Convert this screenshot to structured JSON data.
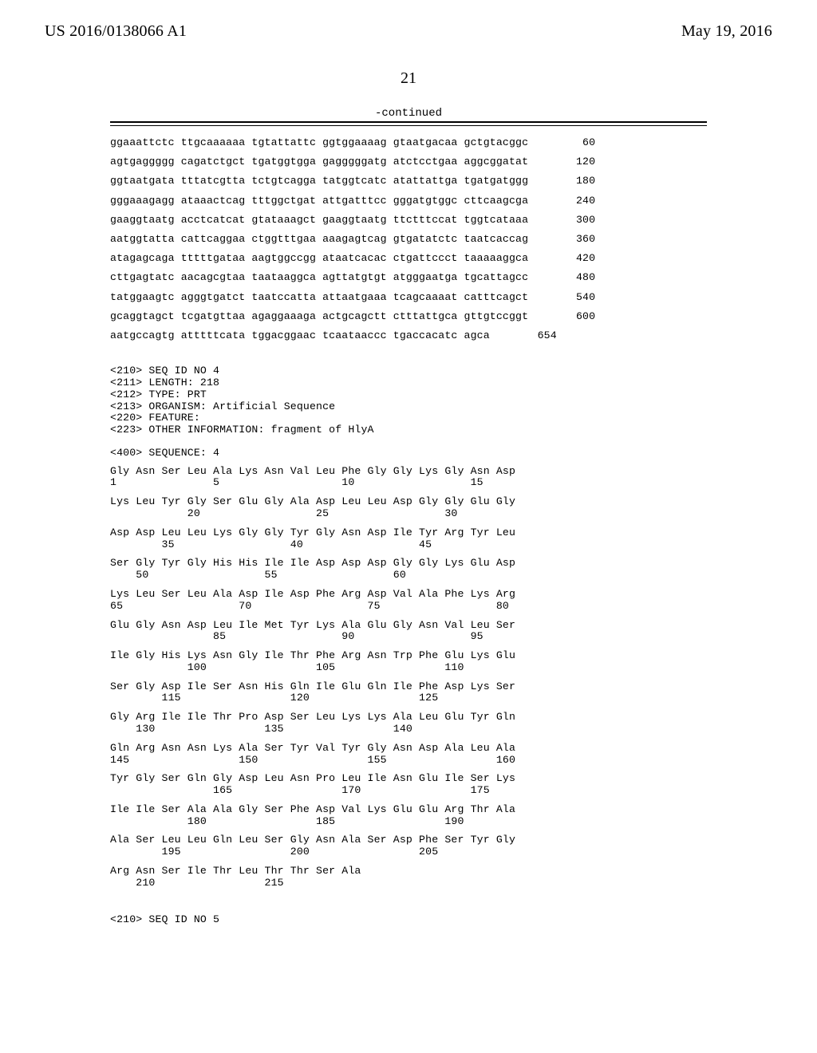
{
  "header": {
    "left": "US 2016/0138066 A1",
    "right": "May 19, 2016"
  },
  "page_number": "21",
  "continued_label": "-continued",
  "dna": {
    "rows": [
      {
        "seq": "ggaaattctc ttgcaaaaaa tgtattattc ggtggaaaag gtaatgacaa gctgtacggc",
        "num": "60"
      },
      {
        "seq": "agtgaggggg cagatctgct tgatggtgga gagggggatg atctcctgaa aggcggatat",
        "num": "120"
      },
      {
        "seq": "ggtaatgata tttatcgtta tctgtcagga tatggtcatc atattattga tgatgatggg",
        "num": "180"
      },
      {
        "seq": "gggaaagagg ataaactcag tttggctgat attgatttcc gggatgtggc cttcaagcga",
        "num": "240"
      },
      {
        "seq": "gaaggtaatg acctcatcat gtataaagct gaaggtaatg ttctttccat tggtcataaa",
        "num": "300"
      },
      {
        "seq": "aatggtatta cattcaggaa ctggtttgaa aaagagtcag gtgatatctc taatcaccag",
        "num": "360"
      },
      {
        "seq": "atagagcaga tttttgataa aagtggccgg ataatcacac ctgattccct taaaaaggca",
        "num": "420"
      },
      {
        "seq": "cttgagtatc aacagcgtaa taataaggca agttatgtgt atgggaatga tgcattagcc",
        "num": "480"
      },
      {
        "seq": "tatggaagtc agggtgatct taatccatta attaatgaaa tcagcaaaat catttcagct",
        "num": "540"
      },
      {
        "seq": "gcaggtagct tcgatgttaa agaggaaaga actgcagctt ctttattgca gttgtccggt",
        "num": "600"
      },
      {
        "seq": "aatgccagtg atttttcata tggacggaac tcaataaccc tgaccacatc agca",
        "num": "654"
      }
    ]
  },
  "meta": {
    "lines": [
      "<210> SEQ ID NO 4",
      "<211> LENGTH: 218",
      "<212> TYPE: PRT",
      "<213> ORGANISM: Artificial Sequence",
      "<220> FEATURE:",
      "<223> OTHER INFORMATION: fragment of HlyA"
    ],
    "sequence_label": "<400> SEQUENCE: 4"
  },
  "protein": [
    {
      "aa": "Gly Asn Ser Leu Ala Lys Asn Val Leu Phe Gly Gly Lys Gly Asn Asp",
      "nm": "1               5                   10                  15"
    },
    {
      "aa": "Lys Leu Tyr Gly Ser Glu Gly Ala Asp Leu Leu Asp Gly Gly Glu Gly",
      "nm": "            20                  25                  30"
    },
    {
      "aa": "Asp Asp Leu Leu Lys Gly Gly Tyr Gly Asn Asp Ile Tyr Arg Tyr Leu",
      "nm": "        35                  40                  45"
    },
    {
      "aa": "Ser Gly Tyr Gly His His Ile Ile Asp Asp Asp Gly Gly Lys Glu Asp",
      "nm": "    50                  55                  60"
    },
    {
      "aa": "Lys Leu Ser Leu Ala Asp Ile Asp Phe Arg Asp Val Ala Phe Lys Arg",
      "nm": "65                  70                  75                  80"
    },
    {
      "aa": "Glu Gly Asn Asp Leu Ile Met Tyr Lys Ala Glu Gly Asn Val Leu Ser",
      "nm": "                85                  90                  95"
    },
    {
      "aa": "Ile Gly His Lys Asn Gly Ile Thr Phe Arg Asn Trp Phe Glu Lys Glu",
      "nm": "            100                 105                 110"
    },
    {
      "aa": "Ser Gly Asp Ile Ser Asn His Gln Ile Glu Gln Ile Phe Asp Lys Ser",
      "nm": "        115                 120                 125"
    },
    {
      "aa": "Gly Arg Ile Ile Thr Pro Asp Ser Leu Lys Lys Ala Leu Glu Tyr Gln",
      "nm": "    130                 135                 140"
    },
    {
      "aa": "Gln Arg Asn Asn Lys Ala Ser Tyr Val Tyr Gly Asn Asp Ala Leu Ala",
      "nm": "145                 150                 155                 160"
    },
    {
      "aa": "Tyr Gly Ser Gln Gly Asp Leu Asn Pro Leu Ile Asn Glu Ile Ser Lys",
      "nm": "                165                 170                 175"
    },
    {
      "aa": "Ile Ile Ser Ala Ala Gly Ser Phe Asp Val Lys Glu Glu Arg Thr Ala",
      "nm": "            180                 185                 190"
    },
    {
      "aa": "Ala Ser Leu Leu Gln Leu Ser Gly Asn Ala Ser Asp Phe Ser Tyr Gly",
      "nm": "        195                 200                 205"
    },
    {
      "aa": "Arg Asn Ser Ile Thr Leu Thr Thr Ser Ala",
      "nm": "    210                 215"
    }
  ],
  "footer_seq": "<210> SEQ ID NO 5"
}
